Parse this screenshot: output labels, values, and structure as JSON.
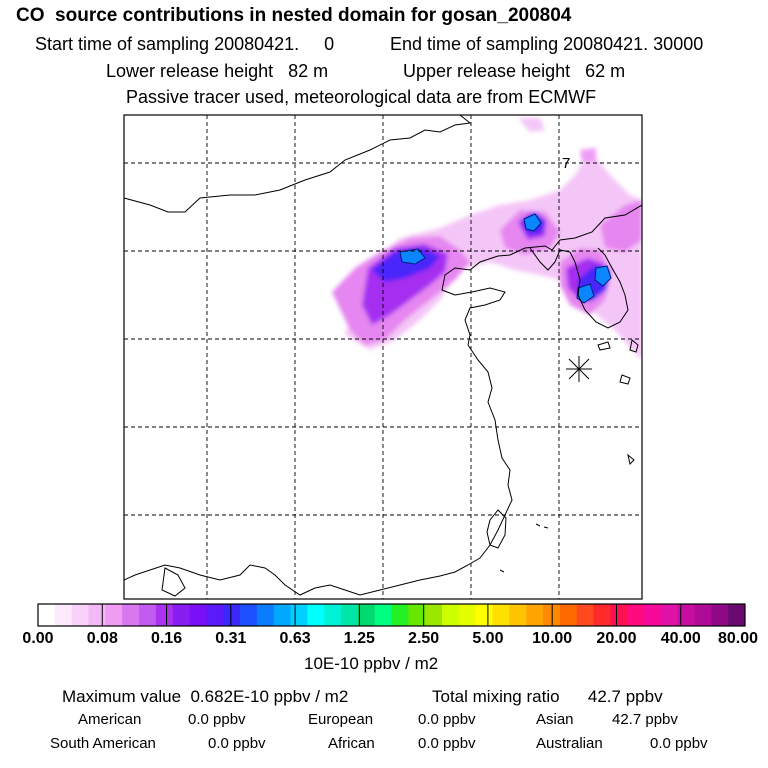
{
  "header": {
    "title": "CO  source contributions in nested domain for gosan_200804",
    "start": "Start time of sampling 20080421.     0",
    "end": "End time of sampling 20080421. 30000",
    "lower": "Lower release height   82 m",
    "upper": "Upper release height   62 m",
    "tracer": "Passive tracer used, meteorological data are from ECMWF"
  },
  "map": {
    "contour_label": "7",
    "marker_icon": "asterisk-station-marker-icon"
  },
  "colorbar": {
    "unit": "10E-10 ppbv / m2",
    "ticks": [
      "0.00",
      "0.08",
      "0.16",
      "0.31",
      "0.63",
      "1.25",
      "2.50",
      "5.00",
      "10.00",
      "20.00",
      "40.00",
      "80.00"
    ],
    "colors": [
      "#ffffff",
      "#fdeafd",
      "#f9d2fa",
      "#f4b8f7",
      "#ef9cf3",
      "#d877f0",
      "#c25cf0",
      "#aa33f0",
      "#8a1ef2",
      "#7a10f6",
      "#5a1afa",
      "#3a28fc",
      "#1f50ff",
      "#0b7cff",
      "#00a8ff",
      "#00d0ff",
      "#00ffff",
      "#00f2d6",
      "#00e6a8",
      "#00d96e",
      "#00ff80",
      "#22f022",
      "#66e600",
      "#9ae600",
      "#ccff00",
      "#e6ff00",
      "#ffff00",
      "#ffe100",
      "#ffc400",
      "#ffa400",
      "#ff8a00",
      "#ff6a00",
      "#ff4a20",
      "#ff2b2b",
      "#ff1050",
      "#ff0a7f",
      "#f50a9c",
      "#e012a8",
      "#c80ea0",
      "#b00a98",
      "#900a88",
      "#6a0a70"
    ]
  },
  "summary": {
    "max_label": "Maximum value  0.682E-10 ppbv / m2",
    "total_label": "Total mixing ratio      42.7 ppbv",
    "regions": [
      {
        "name": "American",
        "value": "0.0 ppbv"
      },
      {
        "name": "European",
        "value": "0.0 ppbv"
      },
      {
        "name": "Asian",
        "value": "42.7 ppbv"
      },
      {
        "name": "South American",
        "value": "0.0 ppbv"
      },
      {
        "name": "African",
        "value": "0.0 ppbv"
      },
      {
        "name": "Australian",
        "value": "0.0 ppbv"
      }
    ]
  }
}
